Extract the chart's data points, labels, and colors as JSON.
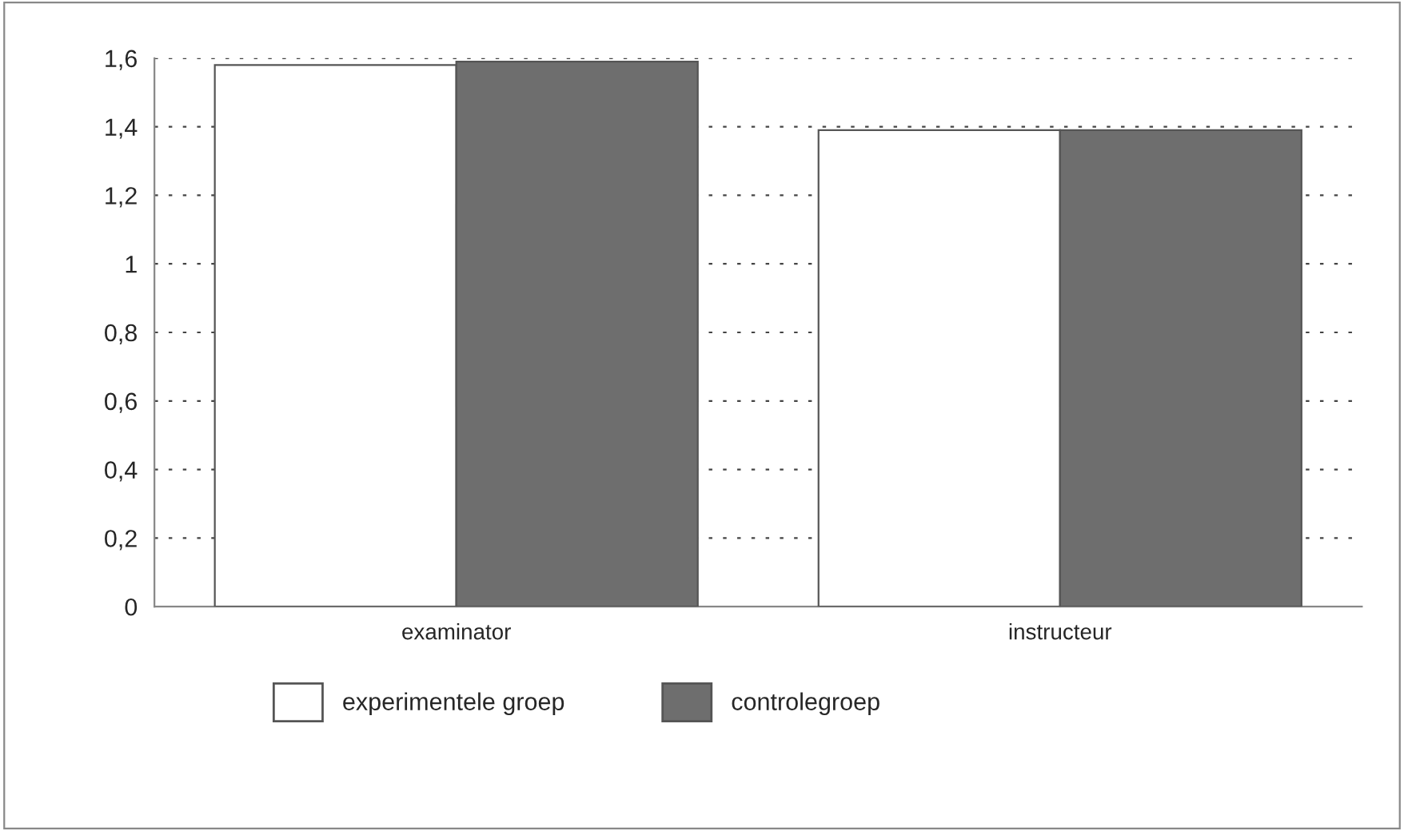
{
  "chart_data": {
    "type": "bar",
    "categories": [
      "examinator",
      "instructeur"
    ],
    "series": [
      {
        "name": "experimentele groep",
        "color": "#ffffff",
        "values": [
          1.58,
          1.39
        ]
      },
      {
        "name": "controlegroep",
        "color": "#6e6e6e",
        "values": [
          1.59,
          1.39
        ]
      }
    ],
    "ylim": [
      0,
      1.6
    ],
    "yticks": [
      0,
      {
        "value": 0.2,
        "label": "0,2"
      },
      {
        "value": 0.4,
        "label": "0,4"
      },
      {
        "value": 0.6,
        "label": "0,6"
      },
      {
        "value": 0.8,
        "label": "0,8"
      },
      1,
      {
        "value": 1.2,
        "label": "1,2"
      },
      {
        "value": 1.4,
        "label": "1,4"
      },
      {
        "value": 1.6,
        "label": "1,6"
      }
    ],
    "grid": "y",
    "legend": "bottom"
  }
}
